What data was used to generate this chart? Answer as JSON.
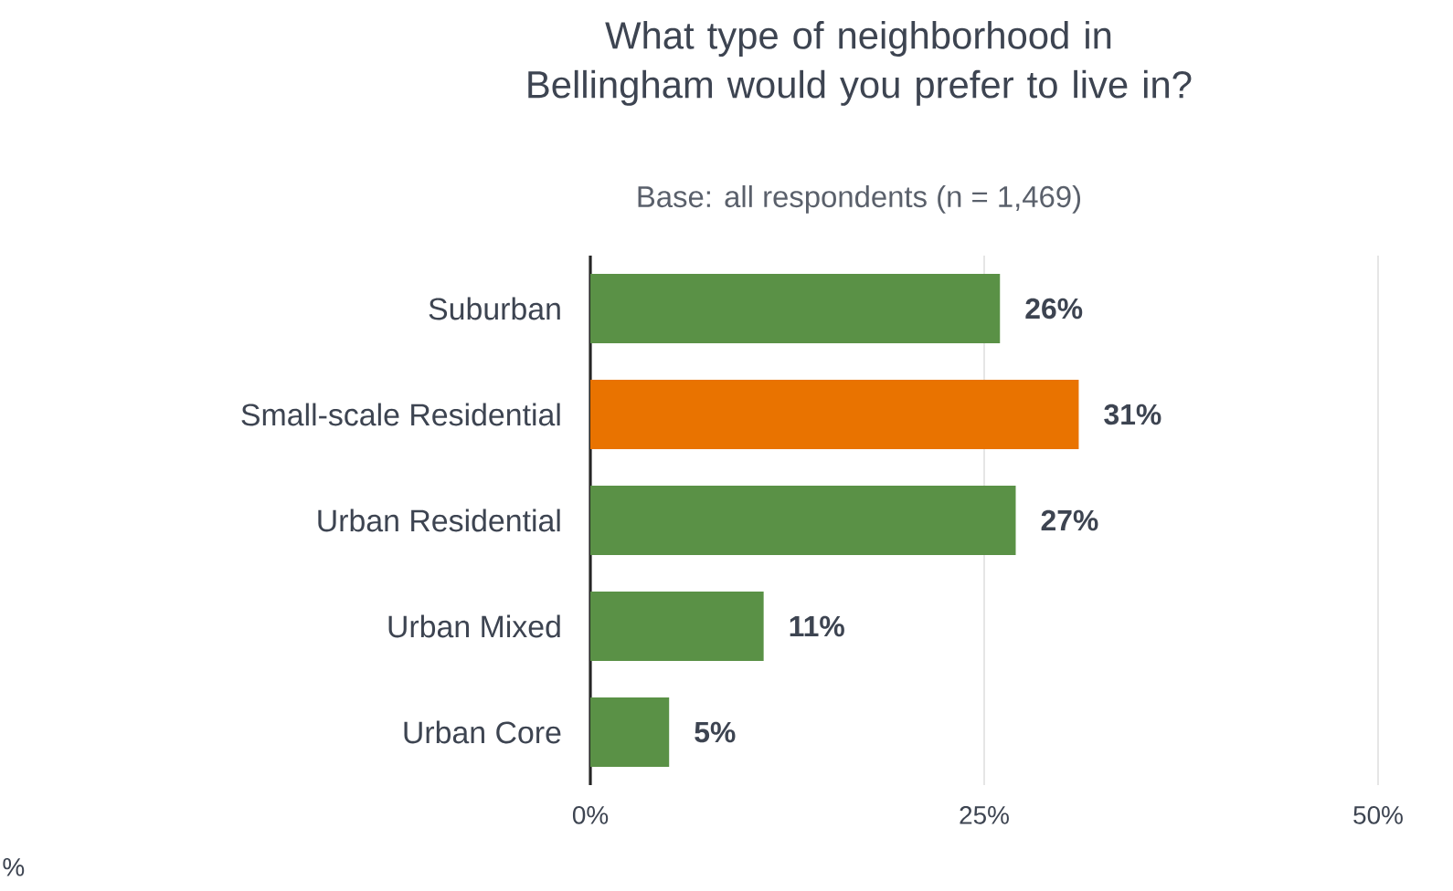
{
  "chart_data": {
    "type": "bar",
    "orientation": "horizontal",
    "title": "What type of neighborhood in Bellingham would you prefer to live in?",
    "subtitle": "Base: all respondents (n = 1,469)",
    "categories": [
      "Suburban",
      "Small-scale Residential",
      "Urban Residential",
      "Urban Mixed",
      "Urban Core"
    ],
    "values": [
      26,
      31,
      27,
      11,
      5
    ],
    "colors": [
      "#5a9146",
      "#e97300",
      "#5a9146",
      "#5a9146",
      "#5a9146"
    ],
    "value_labels": [
      "26%",
      "31%",
      "27%",
      "11%",
      "5%"
    ],
    "xlim": [
      0,
      50
    ],
    "xticks": [
      {
        "value": 0,
        "label": "0%"
      },
      {
        "value": 25,
        "label": "25%"
      },
      {
        "value": 50,
        "label": "50%"
      }
    ],
    "grid": "x",
    "annotations": [
      "%"
    ]
  }
}
